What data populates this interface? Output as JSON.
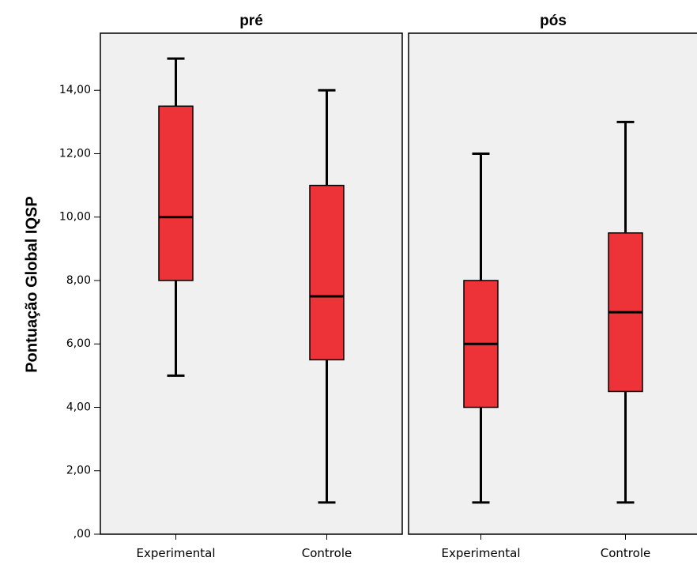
{
  "chart_data": {
    "type": "boxplot",
    "ylabel": "Pontuação Global IQSP",
    "ylim": [
      0,
      15.8
    ],
    "yticks": [
      {
        "value": 0,
        "label": ",00"
      },
      {
        "value": 2,
        "label": "2,00"
      },
      {
        "value": 4,
        "label": "4,00"
      },
      {
        "value": 6,
        "label": "6,00"
      },
      {
        "value": 8,
        "label": "8,00"
      },
      {
        "value": 10,
        "label": "10,00"
      },
      {
        "value": 12,
        "label": "12,00"
      },
      {
        "value": 14,
        "label": "14,00"
      }
    ],
    "box_color": "#EE3338",
    "panel_background": "#F0F0F0",
    "panels": [
      {
        "title": "pré",
        "categories": [
          "Experimental",
          "Controle"
        ],
        "boxes": [
          {
            "category": "Experimental",
            "min": 5,
            "q1": 8,
            "median": 10,
            "q3": 13.5,
            "max": 15
          },
          {
            "category": "Controle",
            "min": 1,
            "q1": 5.5,
            "median": 7.5,
            "q3": 11,
            "max": 14
          }
        ]
      },
      {
        "title": "pós",
        "categories": [
          "Experimental",
          "Controle"
        ],
        "boxes": [
          {
            "category": "Experimental",
            "min": 1,
            "q1": 4,
            "median": 6,
            "q3": 8,
            "max": 12
          },
          {
            "category": "Controle",
            "min": 1,
            "q1": 4.5,
            "median": 7,
            "q3": 9.5,
            "max": 13
          }
        ]
      }
    ]
  }
}
